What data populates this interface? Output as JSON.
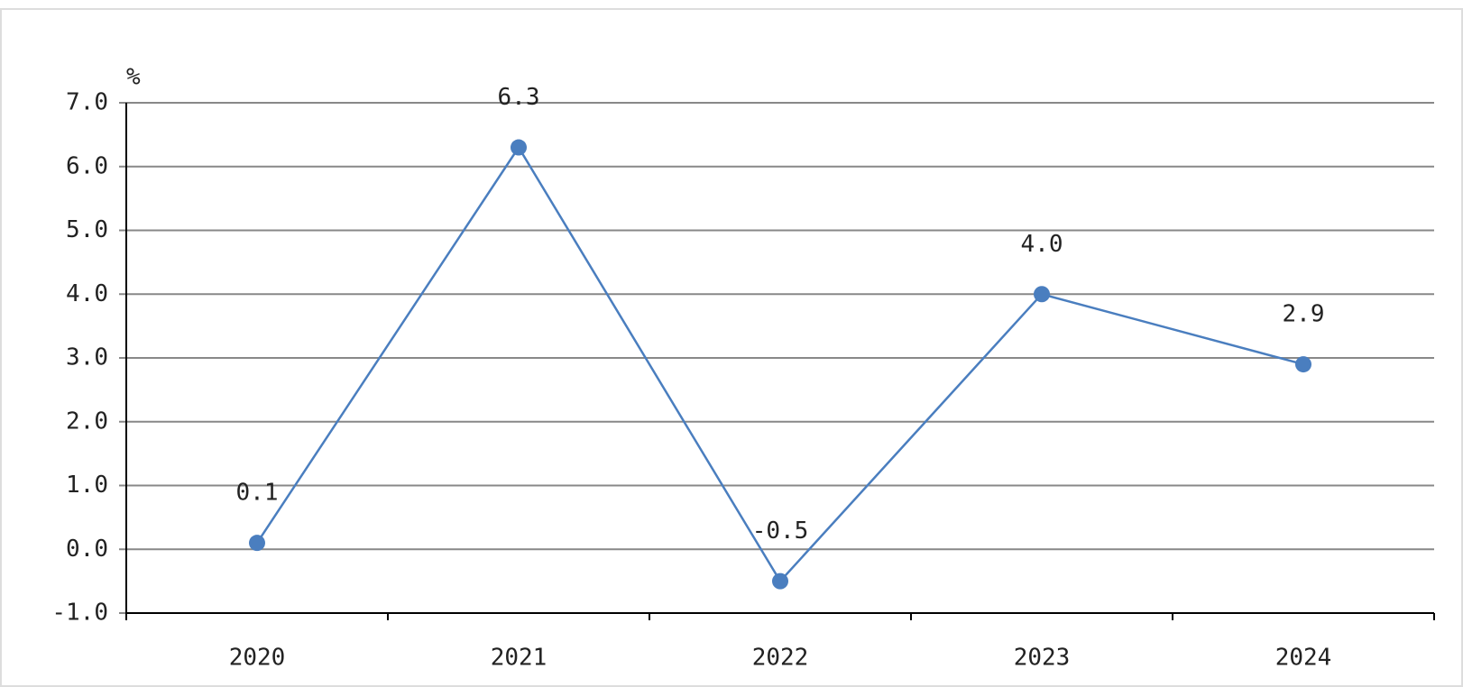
{
  "chart_data": {
    "type": "line",
    "y_unit": "%",
    "categories": [
      "2020",
      "2021",
      "2022",
      "2023",
      "2024"
    ],
    "series": [
      {
        "color": "#4a7ebf",
        "values": [
          0.1,
          6.3,
          -0.5,
          4.0,
          2.9
        ],
        "value_labels": [
          "0.1",
          "6.3",
          "-0.5",
          "4.0",
          "2.9"
        ]
      }
    ],
    "ylim": [
      -1,
      7
    ],
    "yticks": [
      {
        "value": -1,
        "label": "-1.0"
      },
      {
        "value": 0,
        "label": "0.0"
      },
      {
        "value": 1,
        "label": "1.0"
      },
      {
        "value": 2,
        "label": "2.0"
      },
      {
        "value": 3,
        "label": "3.0"
      },
      {
        "value": 4,
        "label": "4.0"
      },
      {
        "value": 5,
        "label": "5.0"
      },
      {
        "value": 6,
        "label": "6.0"
      },
      {
        "value": 7,
        "label": "7.0"
      }
    ],
    "grid": true
  }
}
